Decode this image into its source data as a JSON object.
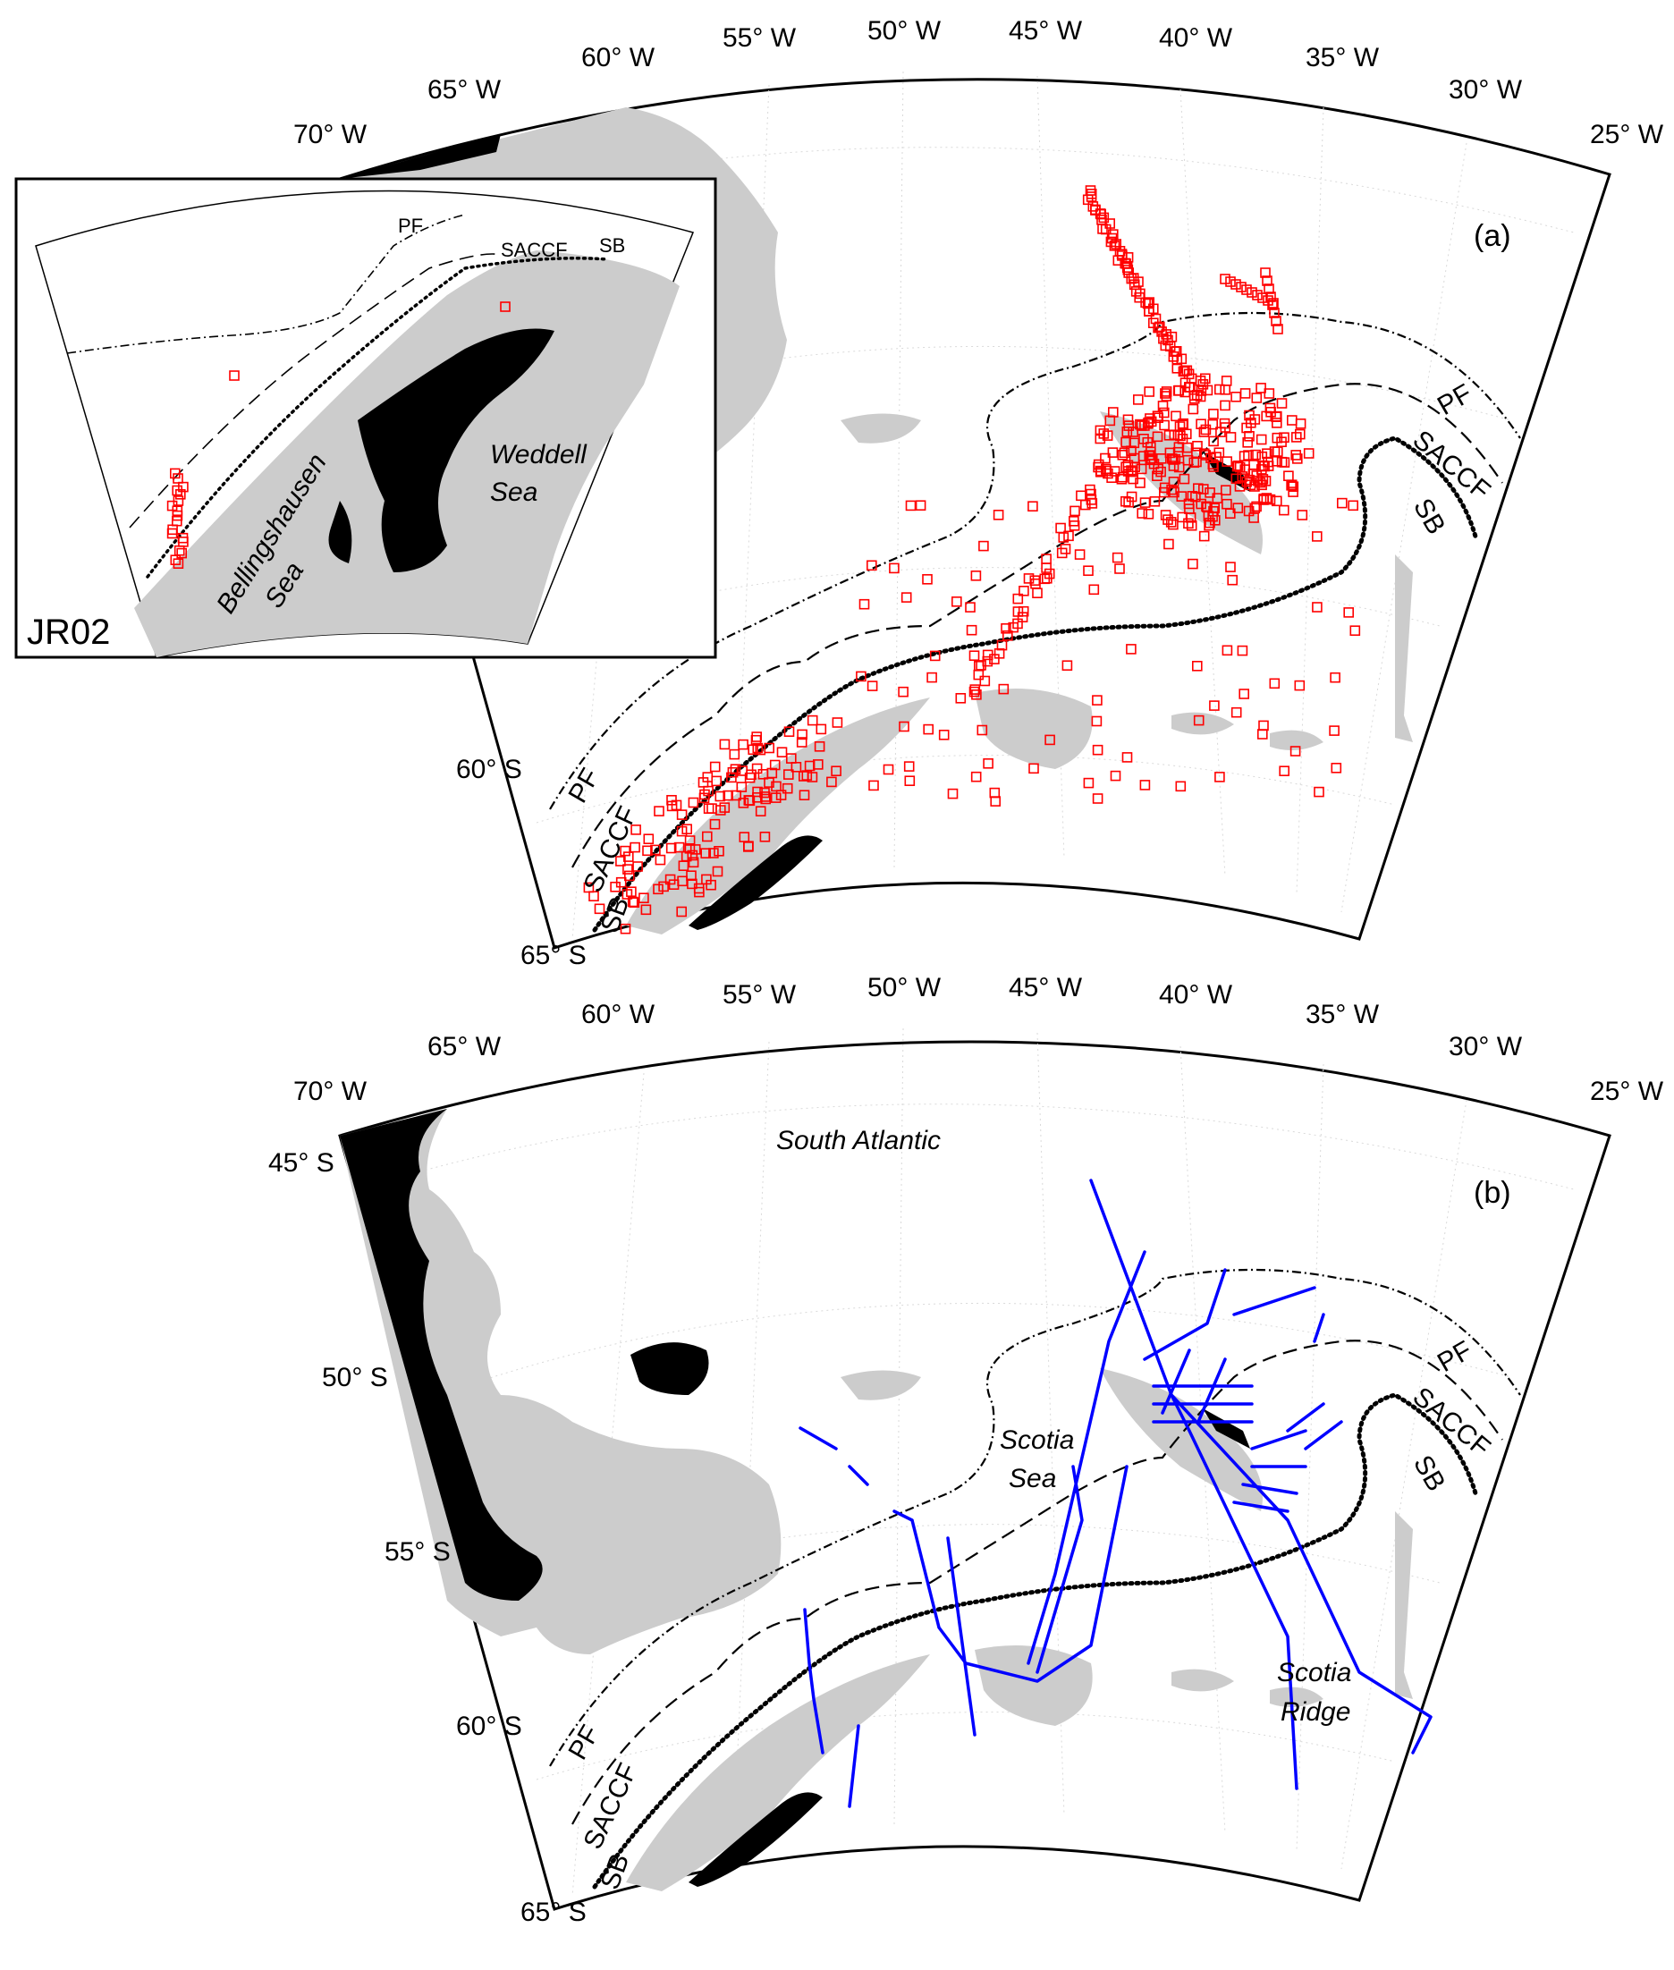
{
  "figure": {
    "panels": [
      {
        "id": "a",
        "panel_label": "(a)",
        "longitude_labels": [
          "70° W",
          "65° W",
          "60° W",
          "55° W",
          "50° W",
          "45° W",
          "40° W",
          "35° W",
          "30° W",
          "25° W"
        ],
        "latitude_labels": [
          "60° S",
          "65° S"
        ],
        "front_labels": {
          "pf": "PF",
          "saccf": "SACCF",
          "sb": "SB"
        },
        "marker_style": {
          "color": "#ff0000",
          "shape": "open-square"
        },
        "inset": {
          "label": "JR02",
          "front_labels": {
            "pf": "PF",
            "saccf": "SACCF",
            "sb": "SB"
          },
          "place_labels": [
            {
              "text": [
                "Weddell",
                "Sea"
              ]
            },
            {
              "text": [
                "Bellingshausen",
                "Sea"
              ]
            }
          ]
        }
      },
      {
        "id": "b",
        "panel_label": "(b)",
        "longitude_labels": [
          "70° W",
          "65° W",
          "60° W",
          "55° W",
          "50° W",
          "45° W",
          "40° W",
          "35° W",
          "30° W",
          "25° W"
        ],
        "latitude_labels": [
          "45° S",
          "50° S",
          "55° S",
          "60° S",
          "65° S"
        ],
        "front_labels": {
          "pf": "PF",
          "saccf": "SACCF",
          "sb": "SB"
        },
        "track_color": "#0000ff",
        "place_labels": [
          {
            "text": [
              "South Atlantic"
            ]
          },
          {
            "text": [
              "Scotia",
              "Sea"
            ]
          },
          {
            "text": [
              "Scotia",
              "Ridge"
            ]
          }
        ]
      }
    ],
    "colors": {
      "land": "#cccccc",
      "ice": "#000000",
      "fronts": "#000000",
      "observations": "#ff0000",
      "tracks": "#0000ff"
    }
  }
}
